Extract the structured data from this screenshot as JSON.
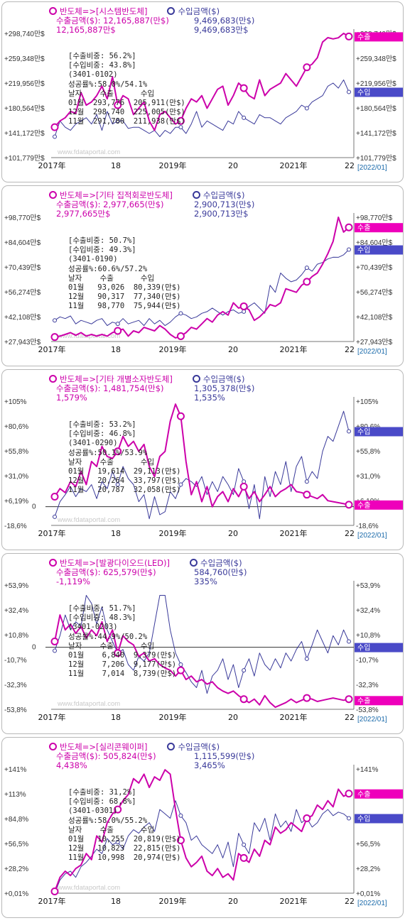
{
  "watermark": "www.fdataportal.com",
  "legend": {
    "export_label": "반도체=>",
    "import_label": "수입금액($)",
    "export_prefix": "수출금액($):"
  },
  "date_stamp": "[2022/01]",
  "x_axis_labels": [
    "2017年",
    "18",
    "2019年",
    "20",
    "2021年",
    "22"
  ],
  "tags": {
    "export": "수출",
    "import": "수입"
  },
  "colors": {
    "export": "#cc00aa",
    "import": "#3a3a9a",
    "export_tag": "#ee00bb",
    "import_tag": "#4a4ac8"
  },
  "info_labels": {
    "header": "날자    수출      수입"
  },
  "chart_data": [
    {
      "type": "line",
      "category": "[시스템반도체]",
      "export_amount": "12,165,887(만$)",
      "export_sub": "12,165,887만$",
      "import_amount": "9,469,683(만$)",
      "import_sub": "9,469,683만$",
      "info": {
        "export_ratio": "[수출비중: 56.2%]",
        "import_ratio": "[수입비중: 43.8%]",
        "code": "(3401-0102)",
        "growth": "성공률%:58.0%/54.1%",
        "rows": [
          [
            "01월",
            "293,776",
            "205,911(만$)"
          ],
          [
            "12월",
            "298,740",
            "225,005(만$)"
          ],
          [
            "11월",
            "291,780",
            "211,938(만$)"
          ]
        ]
      },
      "y_ticks": [
        "+298,740만$",
        "+259,348만$",
        "+219,956만$",
        "+180,564만$",
        "+141,172만$",
        "+101,779만$"
      ],
      "ylim": [
        101779,
        298740
      ],
      "zero_line": false,
      "export_series": [
        150000,
        160000,
        165000,
        175000,
        172000,
        205000,
        185000,
        190000,
        200000,
        215000,
        195000,
        230000,
        185000,
        200000,
        195000,
        170000,
        180000,
        190000,
        160000,
        145000,
        170000,
        175000,
        165000,
        155000,
        160000,
        180000,
        195000,
        190000,
        200000,
        180000,
        195000,
        210000,
        215000,
        185000,
        200000,
        220000,
        212000,
        200000,
        195000,
        225000,
        200000,
        210000,
        215000,
        220000,
        235000,
        225000,
        215000,
        230000,
        245000,
        250000,
        260000,
        285000,
        292000,
        290000,
        291780,
        298740,
        293776
      ],
      "import_series": [
        135000,
        160000,
        150000,
        145000,
        155000,
        160000,
        165000,
        155000,
        170000,
        145000,
        175000,
        155000,
        160000,
        160000,
        148000,
        150000,
        150000,
        145000,
        140000,
        145000,
        135000,
        145000,
        140000,
        150000,
        150000,
        140000,
        155000,
        175000,
        150000,
        160000,
        155000,
        150000,
        145000,
        160000,
        155000,
        175000,
        165000,
        160000,
        155000,
        170000,
        165000,
        165000,
        160000,
        155000,
        165000,
        170000,
        175000,
        185000,
        180000,
        190000,
        195000,
        200000,
        215000,
        220000,
        211938,
        225005,
        205911
      ],
      "export_tag_value": 293776,
      "import_tag_value": 205911
    },
    {
      "type": "line",
      "category": "[기타 집적회로반도체]",
      "export_amount": "2,977,665(만$)",
      "export_sub": "2,977,665만$",
      "import_amount": "2,900,713(만$)",
      "import_sub": "2,900,713만$",
      "info": {
        "export_ratio": "[수출비중: 50.7%]",
        "import_ratio": "[수입비중: 49.3%]",
        "code": "(3401-0190)",
        "growth": "성공률%:60.6%/57.2%",
        "rows": [
          [
            "01월",
            "93,026",
            "80,339(만$)"
          ],
          [
            "12월",
            "90,317",
            "77,340(만$)"
          ],
          [
            "11월",
            "98,770",
            "75,944(만$)"
          ]
        ]
      },
      "y_ticks": [
        "+98,770만$",
        "+84,604만$",
        "+70,439만$",
        "+56,274만$",
        "+42,108만$",
        "+27,943만$"
      ],
      "ylim": [
        27943,
        98770
      ],
      "zero_line": false,
      "export_series": [
        30500,
        31000,
        32000,
        33000,
        31500,
        33000,
        31000,
        32000,
        31000,
        32000,
        31000,
        33000,
        34000,
        35000,
        31000,
        34000,
        33000,
        36000,
        35000,
        34000,
        37000,
        35000,
        32000,
        30000,
        31000,
        33000,
        36000,
        35000,
        38000,
        41000,
        39000,
        43000,
        45000,
        43000,
        50000,
        47000,
        48000,
        46000,
        40000,
        42000,
        45000,
        49000,
        48000,
        50000,
        58000,
        57000,
        56000,
        60000,
        62000,
        65000,
        67000,
        72000,
        78000,
        85000,
        98770,
        90317,
        93026
      ],
      "import_series": [
        40000,
        42000,
        41000,
        42500,
        38000,
        40000,
        39000,
        38000,
        40000,
        41000,
        37000,
        39000,
        38000,
        41000,
        38000,
        39000,
        40000,
        37000,
        41000,
        38000,
        40000,
        37000,
        39000,
        42000,
        44000,
        43000,
        41000,
        42000,
        44000,
        45000,
        47000,
        45000,
        43000,
        45000,
        46000,
        44000,
        45000,
        48000,
        50000,
        47000,
        44000,
        60000,
        56000,
        67000,
        64000,
        62000,
        63000,
        66000,
        70000,
        68000,
        72000,
        73000,
        75000,
        76000,
        75944,
        77340,
        80339
      ],
      "export_tag_value": 93026,
      "import_tag_value": 80339
    },
    {
      "type": "line",
      "category": "[기타 개별소자반도체]",
      "export_amount": "1,481,754(만$)",
      "export_sub": "1,579%",
      "import_amount": "1,305,378(만$)",
      "import_sub": "1,535%",
      "info": {
        "export_ratio": "[수출비중: 53.2%]",
        "import_ratio": "[수입비중: 46.8%]",
        "code": "(3401-0290)",
        "growth": "성공률%:50.1%/53.9%",
        "rows": [
          [
            "01월",
            "19,614",
            "29,113(만$)"
          ],
          [
            "12월",
            "20,264",
            "33,797(만$)"
          ],
          [
            "11월",
            "20,787",
            "32,058(만$)"
          ]
        ]
      },
      "y_ticks": [
        "+105%",
        "+80,6%",
        "+55,8%",
        "+31,0%",
        "+6,19%",
        "-18,6%"
      ],
      "ylim": [
        -18.6,
        105
      ],
      "zero_line": true,
      "export_series": [
        10,
        18,
        14,
        25,
        20,
        35,
        22,
        45,
        40,
        60,
        50,
        48,
        55,
        70,
        60,
        65,
        55,
        62,
        40,
        30,
        50,
        55,
        85,
        102,
        90,
        45,
        12,
        25,
        5,
        20,
        0,
        10,
        15,
        5,
        18,
        10,
        20,
        8,
        15,
        5,
        12,
        20,
        10,
        15,
        18,
        22,
        15,
        14,
        12,
        10,
        8,
        12,
        6,
        5,
        4,
        3,
        2
      ],
      "import_series": [
        -10,
        5,
        12,
        20,
        10,
        18,
        15,
        22,
        8,
        25,
        18,
        35,
        22,
        40,
        28,
        22,
        5,
        12,
        -12,
        10,
        -8,
        -5,
        15,
        8,
        22,
        28,
        25,
        20,
        30,
        12,
        25,
        15,
        30,
        22,
        12,
        38,
        25,
        -2,
        22,
        -12,
        30,
        10,
        35,
        22,
        45,
        15,
        40,
        50,
        25,
        35,
        28,
        55,
        70,
        65,
        80,
        95,
        75
      ],
      "export_tag_value": 2,
      "import_tag_value": 75
    },
    {
      "type": "line",
      "category": "[발광다이오드(LED)]",
      "export_amount": "625,579(만$)",
      "export_sub": "-1,119%",
      "import_amount": "584,760(만$)",
      "import_sub": "335%",
      "info": {
        "export_ratio": "[수출비중: 51.7%]",
        "import_ratio": "[수입비중: 48.3%]",
        "code": "(3401-0203)",
        "growth": "성공률%:44.9%/50.2%",
        "rows": [
          [
            "01월",
            "6,840",
            "9,379(만$)"
          ],
          [
            "12월",
            "7,206",
            "9,177(만$)"
          ],
          [
            "11월",
            "7,014",
            "8,739(만$)"
          ]
        ]
      },
      "y_ticks": [
        "+53,9%",
        "+32,4%",
        "+10,8%",
        "-10,7%",
        "-32,3%",
        "-53,8%"
      ],
      "ylim": [
        -53.8,
        53.9
      ],
      "zero_line": true,
      "export_series": [
        5,
        28,
        15,
        20,
        12,
        18,
        8,
        15,
        10,
        22,
        5,
        15,
        -5,
        10,
        5,
        2,
        -8,
        -5,
        -12,
        -10,
        -15,
        -18,
        -20,
        -25,
        -20,
        -28,
        -25,
        -30,
        -28,
        -32,
        -30,
        -35,
        -38,
        -40,
        -38,
        -42,
        -45,
        -48,
        -45,
        -50,
        -42,
        -48,
        -52,
        -50,
        -48,
        -45,
        -48,
        -46,
        -44,
        -45,
        -47,
        -46,
        -45,
        -44,
        -45,
        -46,
        -45
      ],
      "import_series": [
        -3,
        10,
        28,
        15,
        22,
        18,
        45,
        38,
        20,
        35,
        15,
        5,
        -5,
        -2,
        -15,
        -20,
        -8,
        -12,
        -5,
        20,
        45,
        45,
        15,
        -5,
        -15,
        -22,
        -30,
        -35,
        -20,
        -40,
        -25,
        -20,
        -10,
        -28,
        -15,
        -35,
        -20,
        -10,
        -25,
        -5,
        -15,
        -20,
        -10,
        -18,
        -5,
        -12,
        -2,
        5,
        -10,
        2,
        15,
        5,
        -5,
        10,
        2,
        15,
        5
      ],
      "export_tag_value": -46,
      "import_tag_value": 0
    },
    {
      "type": "line",
      "category": "[실리콘웨이퍼]",
      "export_amount": "505,824(만$)",
      "export_sub": "4,438%",
      "import_amount": "1,115,599(만$)",
      "import_sub": "3,465%",
      "info": {
        "export_ratio": "[수출비중: 31,2%]",
        "import_ratio": "[수입비중: 68,8%]",
        "code": "(3401-0301)",
        "growth": "성공률%:58.0%/55.2%",
        "rows": [
          [
            "01월",
            "10,255",
            "20,819(만$)"
          ],
          [
            "12월",
            "10,823",
            "22,815(만$)"
          ],
          [
            "11월",
            "10,998",
            "20,974(만$)"
          ]
        ]
      },
      "y_ticks": [
        "+141%",
        "+113%",
        "+84,8%",
        "+56,5%",
        "+28,2%",
        "+0,01%"
      ],
      "ylim": [
        0.01,
        141
      ],
      "zero_line": false,
      "export_series": [
        2,
        18,
        25,
        20,
        28,
        32,
        45,
        38,
        65,
        58,
        80,
        90,
        95,
        105,
        112,
        130,
        125,
        135,
        120,
        132,
        128,
        140,
        135,
        95,
        60,
        40,
        30,
        35,
        42,
        25,
        20,
        28,
        18,
        22,
        15,
        45,
        40,
        35,
        50,
        42,
        60,
        55,
        75,
        68,
        72,
        80,
        75,
        70,
        85,
        88,
        100,
        95,
        105,
        98,
        118,
        110,
        113
      ],
      "import_series": [
        0,
        15,
        22,
        25,
        18,
        30,
        35,
        42,
        50,
        45,
        62,
        55,
        58,
        50,
        65,
        72,
        68,
        75,
        80,
        70,
        95,
        90,
        85,
        105,
        88,
        80,
        60,
        65,
        55,
        50,
        45,
        55,
        40,
        58,
        30,
        68,
        55,
        45,
        80,
        70,
        85,
        60,
        90,
        75,
        82,
        70,
        95,
        80,
        85,
        75,
        80,
        90,
        95,
        88,
        92,
        90,
        85
      ],
      "export_tag_value": 113,
      "import_tag_value": 85
    }
  ]
}
